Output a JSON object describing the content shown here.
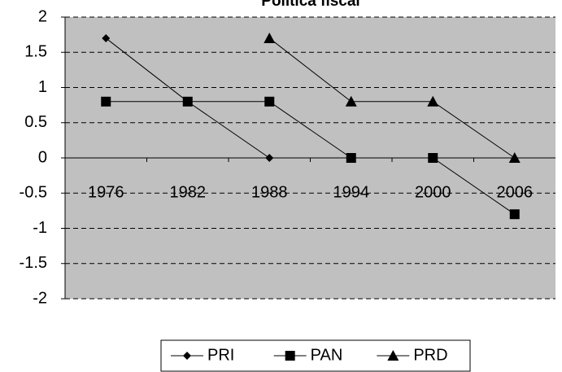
{
  "chart_data": {
    "type": "line",
    "title": "Política fiscal",
    "categories": [
      "1976",
      "1982",
      "1988",
      "1994",
      "2000",
      "2006"
    ],
    "series": [
      {
        "name": "PRI",
        "color": "#000000",
        "marker": "diamond",
        "values": [
          1.7,
          0.8,
          0,
          0,
          null,
          null
        ]
      },
      {
        "name": "PAN",
        "color": "#000000",
        "marker": "square",
        "values": [
          0.8,
          0.8,
          0.8,
          0,
          0,
          -0.8
        ]
      },
      {
        "name": "PRD",
        "color": "#000000",
        "marker": "triangle",
        "values": [
          null,
          null,
          1.7,
          0.8,
          0.8,
          0
        ]
      }
    ],
    "ylim": [
      -2,
      2
    ],
    "yticks": [
      -2,
      -1.5,
      -1,
      -0.5,
      0,
      0.5,
      1,
      1.5,
      2
    ],
    "grid": true,
    "legend": "bottom"
  }
}
